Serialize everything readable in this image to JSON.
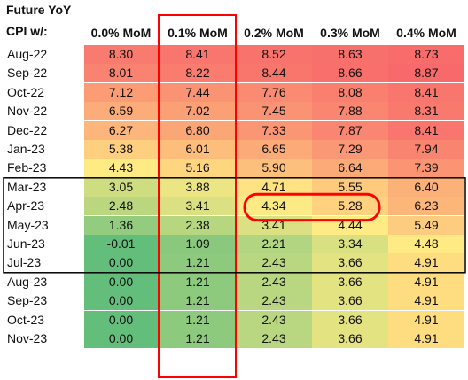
{
  "chart_data": {
    "type": "heatmap",
    "title_line1": "Future YoY",
    "title_line2": "CPI w/:",
    "columns": [
      "0.0% MoM",
      "0.1% MoM",
      "0.2% MoM",
      "0.3% MoM",
      "0.4% MoM"
    ],
    "rows": [
      {
        "label": "Aug-22",
        "values": [
          "8.30",
          "8.41",
          "8.52",
          "8.63",
          "8.73"
        ]
      },
      {
        "label": "Sep-22",
        "values": [
          "8.01",
          "8.22",
          "8.44",
          "8.66",
          "8.87"
        ]
      },
      {
        "label": "Oct-22",
        "values": [
          "7.12",
          "7.44",
          "7.76",
          "8.08",
          "8.41"
        ]
      },
      {
        "label": "Nov-22",
        "values": [
          "6.59",
          "7.02",
          "7.45",
          "7.88",
          "8.31"
        ]
      },
      {
        "label": "Dec-22",
        "values": [
          "6.27",
          "6.80",
          "7.33",
          "7.87",
          "8.41"
        ]
      },
      {
        "label": "Jan-23",
        "values": [
          "5.38",
          "6.01",
          "6.65",
          "7.29",
          "7.94"
        ]
      },
      {
        "label": "Feb-23",
        "values": [
          "4.43",
          "5.16",
          "5.90",
          "6.64",
          "7.39"
        ]
      },
      {
        "label": "Mar-23",
        "values": [
          "3.05",
          "3.88",
          "4.71",
          "5.55",
          "6.40"
        ]
      },
      {
        "label": "Apr-23",
        "values": [
          "2.48",
          "3.41",
          "4.34",
          "5.28",
          "6.23"
        ]
      },
      {
        "label": "May-23",
        "values": [
          "1.36",
          "2.38",
          "3.41",
          "4.44",
          "5.49"
        ]
      },
      {
        "label": "Jun-23",
        "values": [
          "-0.01",
          "1.09",
          "2.21",
          "3.34",
          "4.48"
        ]
      },
      {
        "label": "Jul-23",
        "values": [
          "0.00",
          "1.21",
          "2.43",
          "3.66",
          "4.91"
        ]
      },
      {
        "label": "Aug-23",
        "values": [
          "0.00",
          "1.21",
          "2.43",
          "3.66",
          "4.91"
        ]
      },
      {
        "label": "Sep-23",
        "values": [
          "0.00",
          "1.21",
          "2.43",
          "3.66",
          "4.91"
        ]
      },
      {
        "label": "Oct-23",
        "values": [
          "0.00",
          "1.21",
          "2.43",
          "3.66",
          "4.91"
        ]
      },
      {
        "label": "Nov-23",
        "values": [
          "0.00",
          "1.21",
          "2.43",
          "3.66",
          "4.91"
        ]
      }
    ],
    "color_scale": {
      "low": "#63be7b",
      "mid": "#ffeb84",
      "high": "#f8696b"
    },
    "highlights": {
      "column_box": {
        "column": "0.1% MoM",
        "color": "#ff0000"
      },
      "row_box": {
        "from": "Mar-23",
        "to": "Jul-23",
        "color": "#000000"
      },
      "oval": {
        "row": "Apr-23",
        "columns": [
          "0.2% MoM",
          "0.3% MoM"
        ],
        "color": "#ff0000"
      }
    }
  }
}
